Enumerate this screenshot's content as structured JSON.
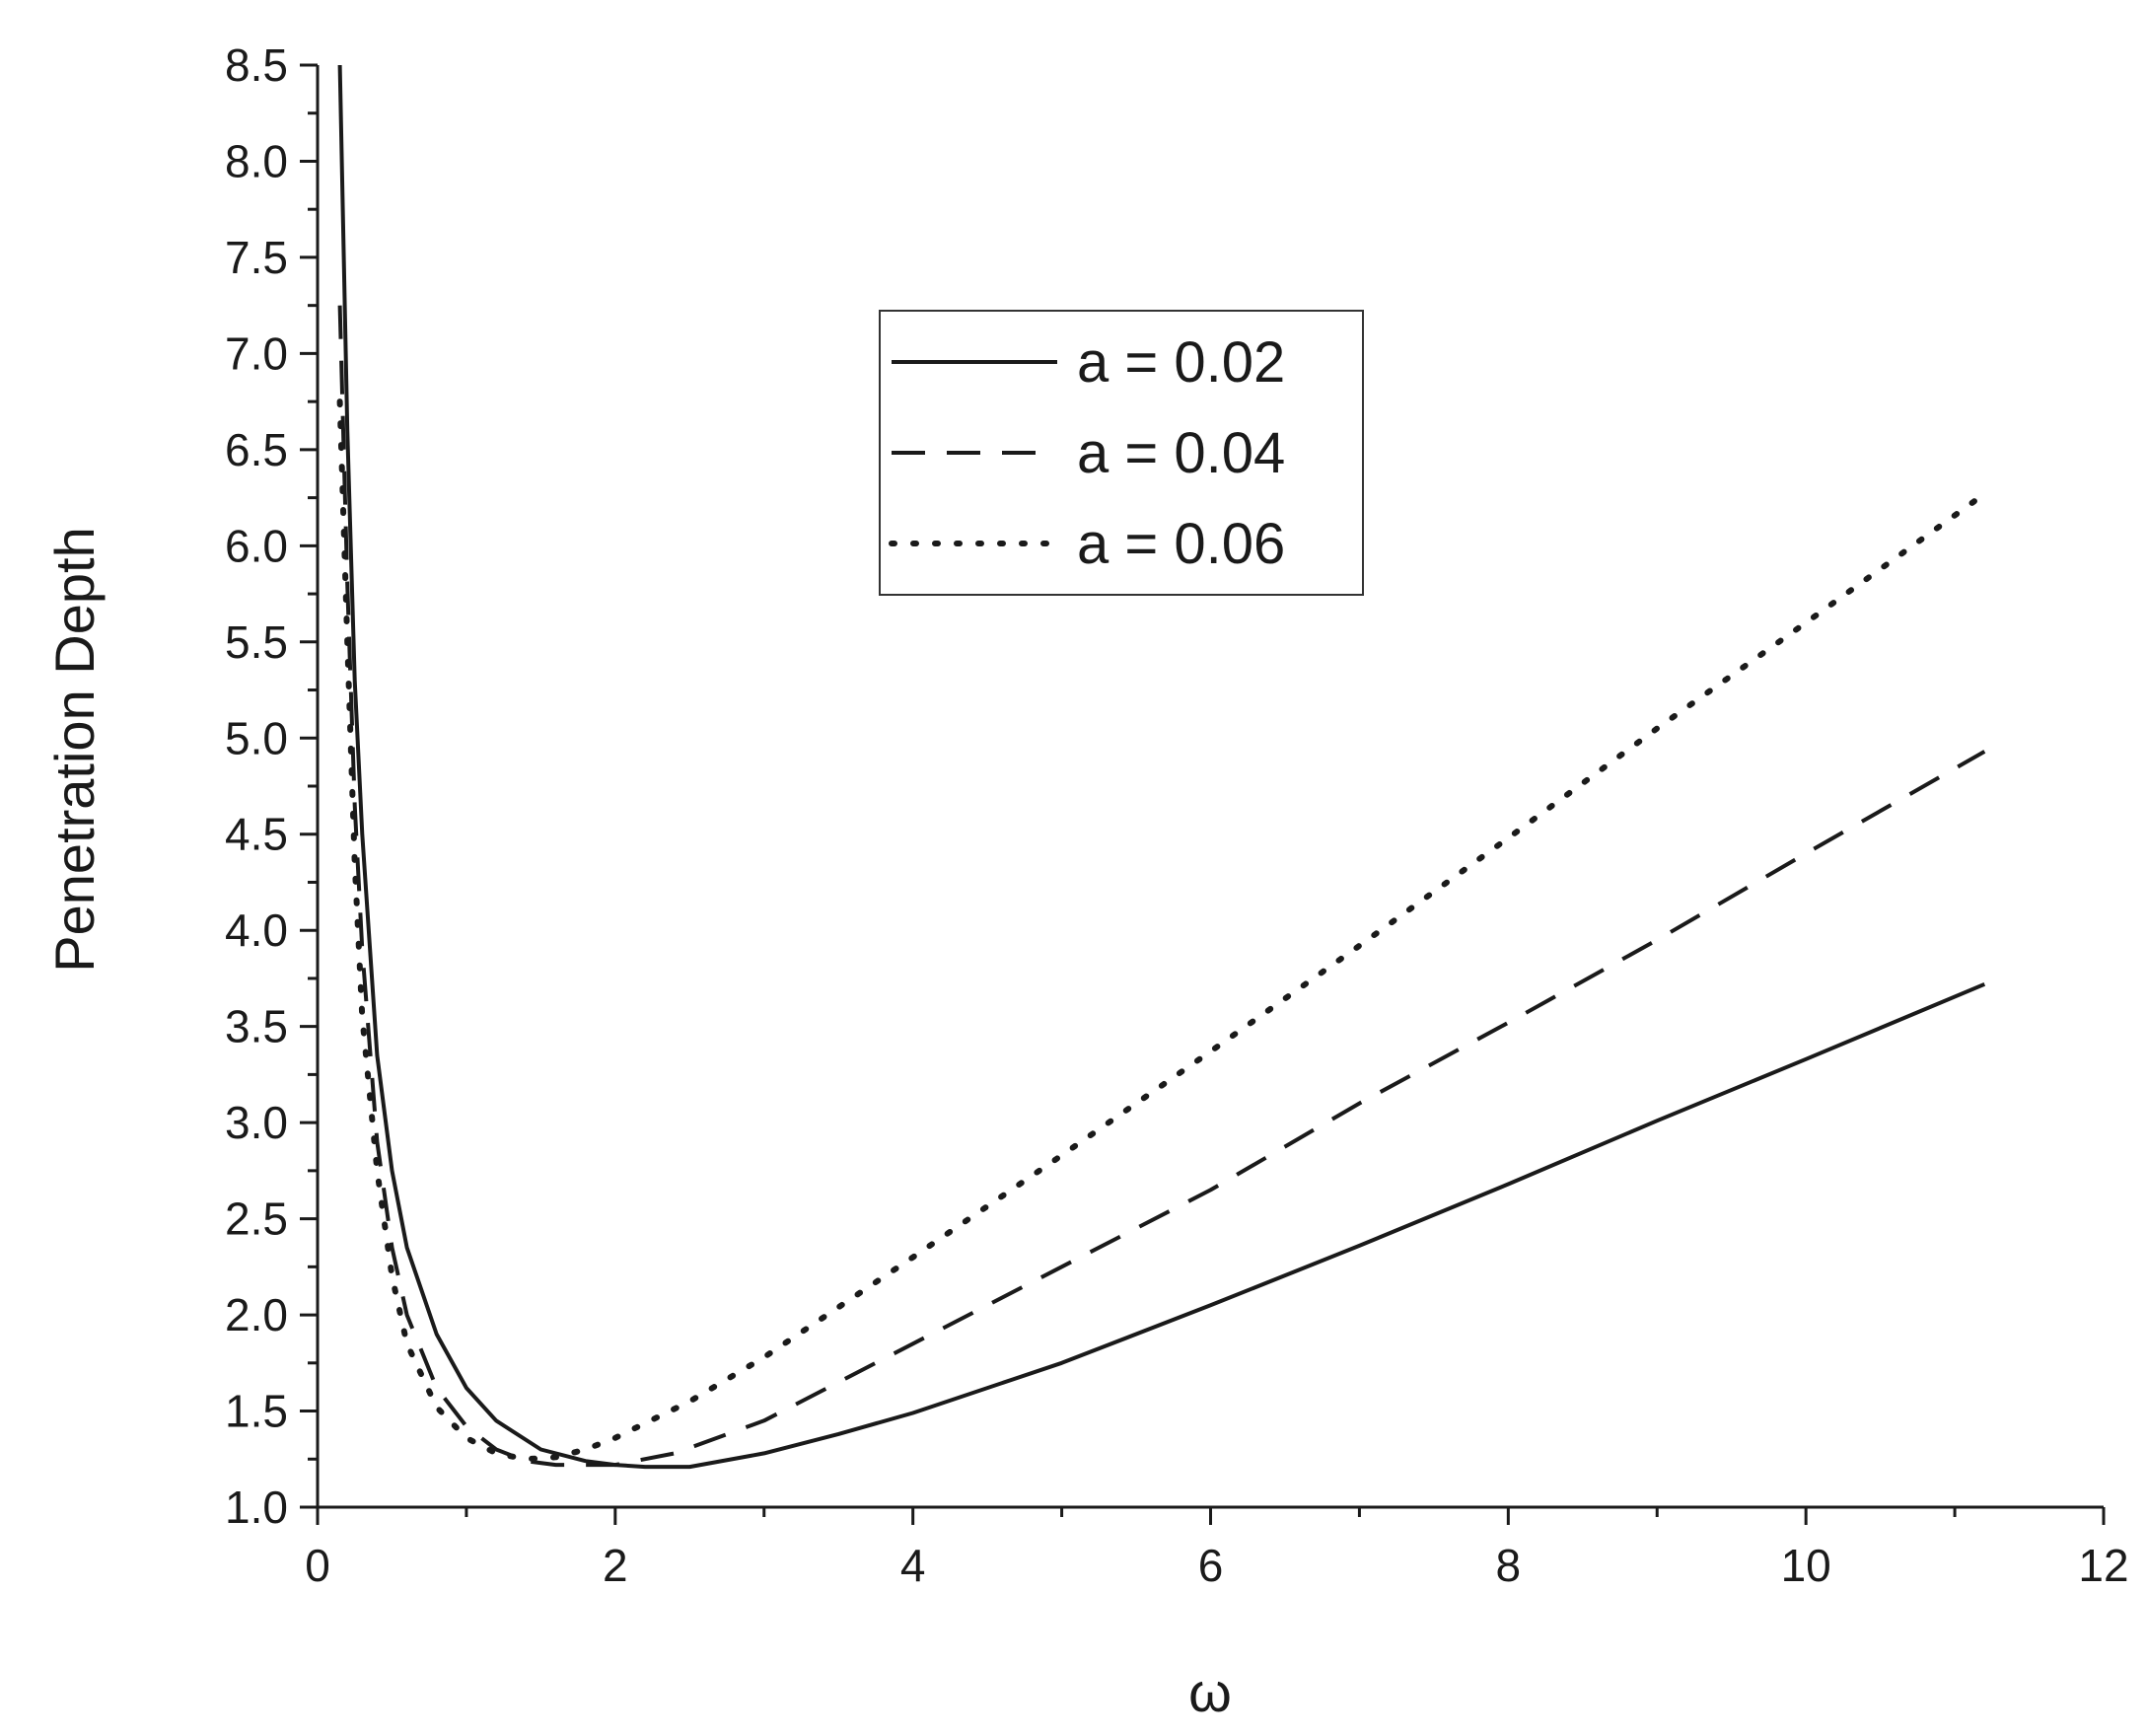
{
  "chart_data": {
    "type": "line",
    "title": "",
    "xlabel": "ω",
    "ylabel": "Penetration Depth",
    "xlim": [
      0,
      12
    ],
    "ylim": [
      1.0,
      8.5
    ],
    "x_ticks": [
      0,
      2,
      4,
      6,
      8,
      10,
      12
    ],
    "x_tick_labels": [
      "0",
      "2",
      "4",
      "6",
      "8",
      "10",
      "12"
    ],
    "y_ticks": [
      1.0,
      1.5,
      2.0,
      2.5,
      3.0,
      3.5,
      4.0,
      4.5,
      5.0,
      5.5,
      6.0,
      6.5,
      7.0,
      7.5,
      8.0,
      8.5
    ],
    "y_tick_labels": [
      "1.0",
      "1.5",
      "2.0",
      "2.5",
      "3.0",
      "3.5",
      "4.0",
      "4.5",
      "5.0",
      "5.5",
      "6.0",
      "6.5",
      "7.0",
      "7.5",
      "8.0",
      "8.5"
    ],
    "grid": false,
    "legend_position": "upper-center",
    "line_color": "#1a1a1a",
    "series": [
      {
        "name": "a = 0.02",
        "style": "solid",
        "x": [
          0.15,
          0.2,
          0.25,
          0.3,
          0.4,
          0.5,
          0.6,
          0.8,
          1.0,
          1.2,
          1.5,
          1.8,
          2.0,
          2.2,
          2.5,
          3.0,
          3.5,
          4.0,
          5.0,
          6.0,
          7.0,
          8.0,
          9.0,
          10.0,
          11.2
        ],
        "y": [
          8.5,
          6.6,
          5.3,
          4.5,
          3.35,
          2.75,
          2.35,
          1.9,
          1.62,
          1.45,
          1.3,
          1.24,
          1.22,
          1.21,
          1.21,
          1.28,
          1.38,
          1.49,
          1.75,
          2.05,
          2.36,
          2.68,
          3.01,
          3.33,
          3.72
        ]
      },
      {
        "name": "a = 0.04",
        "style": "dashed",
        "x": [
          0.15,
          0.2,
          0.25,
          0.3,
          0.4,
          0.5,
          0.6,
          0.8,
          1.0,
          1.2,
          1.4,
          1.6,
          1.8,
          2.0,
          2.4,
          3.0,
          4.0,
          5.0,
          6.0,
          7.0,
          8.0,
          9.0,
          10.0,
          11.2
        ],
        "y": [
          7.25,
          5.8,
          4.65,
          3.9,
          2.9,
          2.35,
          2.0,
          1.62,
          1.42,
          1.3,
          1.24,
          1.22,
          1.22,
          1.22,
          1.28,
          1.45,
          1.85,
          2.25,
          2.65,
          3.1,
          3.52,
          3.95,
          4.4,
          4.93
        ]
      },
      {
        "name": "a = 0.06",
        "style": "dotted",
        "x": [
          0.15,
          0.2,
          0.25,
          0.3,
          0.4,
          0.5,
          0.6,
          0.8,
          1.0,
          1.2,
          1.4,
          1.6,
          1.8,
          2.0,
          2.5,
          3.0,
          4.0,
          5.0,
          6.0,
          7.0,
          8.0,
          9.0,
          10.0,
          11.2
        ],
        "y": [
          6.75,
          5.5,
          4.35,
          3.55,
          2.75,
          2.2,
          1.85,
          1.52,
          1.36,
          1.28,
          1.25,
          1.26,
          1.3,
          1.36,
          1.55,
          1.78,
          2.3,
          2.83,
          3.37,
          3.92,
          4.48,
          5.05,
          5.6,
          6.27
        ]
      }
    ]
  }
}
